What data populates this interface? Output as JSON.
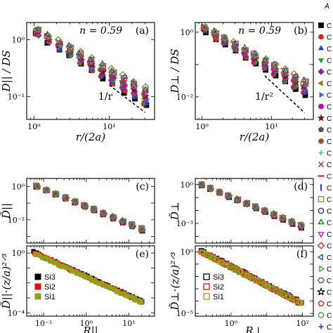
{
  "colors": [
    "#000000",
    "#d62728",
    "#1f3fbf",
    "#2ca02c",
    "#7b2fa0",
    "#808000",
    "#3070c8",
    "#c01090",
    "#7a1010",
    "#555555",
    "#a05020",
    "#40c0e0",
    "#8c564b",
    "#d02060",
    "#3b3b98",
    "#6a9a2a"
  ],
  "chart_data": [
    {
      "type": "scatter",
      "panel_label": "(a)",
      "note": "n = 0.59",
      "slope_label": "1/r",
      "ylabel": "D|| / DS",
      "xlabel": "r/(2a)",
      "xscale": "log",
      "yscale": "log",
      "xlim": [
        0.8,
        40
      ],
      "ylim": [
        0.04,
        2
      ],
      "x_ticks": [
        {
          "v": 1,
          "label": "10⁰"
        },
        {
          "v": 10,
          "label": "10¹"
        }
      ],
      "y_ticks": [
        {
          "v": 0.1,
          "label": "10⁻¹"
        },
        {
          "v": 1,
          "label": "10⁰"
        }
      ],
      "model": {
        "x_min": 1.1,
        "x_max": 30,
        "y0": 1.35,
        "k": 0.78,
        "spread": 0.32,
        "n_series": 16,
        "n_points": 11
      },
      "guide": {
        "x": [
          10,
          30
        ],
        "y": [
          0.16,
          0.053
        ]
      }
    },
    {
      "type": "scatter",
      "panel_label": "(b)",
      "note": "n = 0.59",
      "slope_label": "1/r²",
      "ylabel": "D⊥ / DS",
      "xlabel": "r/(2a)",
      "xscale": "log",
      "yscale": "log",
      "xlim": [
        0.8,
        40
      ],
      "ylim": [
        0.002,
        2
      ],
      "x_ticks": [
        {
          "v": 1,
          "label": "10⁰"
        },
        {
          "v": 10,
          "label": "10¹"
        }
      ],
      "y_ticks": [
        {
          "v": 0.01,
          "label": "10⁻²"
        },
        {
          "v": 1,
          "label": "10⁰"
        }
      ],
      "model": {
        "x_min": 1.1,
        "x_max": 30,
        "y0": 1.25,
        "k": 1.25,
        "spread": 0.45,
        "n_series": 16,
        "n_points": 11
      },
      "guide": {
        "x": [
          8,
          30
        ],
        "y": [
          0.045,
          0.0032
        ]
      }
    },
    {
      "type": "scatter",
      "panel_label": "(c)",
      "ylabel": "D̃||",
      "xlabel": "",
      "xscale": "log",
      "yscale": "log",
      "xlim": [
        0.04,
        40
      ],
      "ylim": [
        0.0004,
        3
      ],
      "x_ticks": [],
      "y_ticks": [
        {
          "v": 0.01,
          "label": "10⁻²"
        },
        {
          "v": 1,
          "label": "10⁰"
        }
      ],
      "model": {
        "x_min": 0.07,
        "x_max": 20,
        "y0": 1.0,
        "k": 1.05,
        "spread": 0.12,
        "n_series": 16,
        "n_points": 12
      }
    },
    {
      "type": "scatter",
      "panel_label": "(d)",
      "ylabel": "D̃⊥",
      "xlabel": "",
      "xscale": "log",
      "yscale": "log",
      "xlim": [
        0.1,
        200
      ],
      "ylim": [
        3e-05,
        3
      ],
      "x_ticks": [],
      "y_ticks": [
        {
          "v": 0.001,
          "label": "10⁻³"
        },
        {
          "v": 1,
          "label": "10⁰"
        }
      ],
      "model": {
        "x_min": 0.15,
        "x_max": 90,
        "y0": 0.95,
        "k": 1.15,
        "spread": 0.18,
        "n_series": 16,
        "n_points": 12
      }
    },
    {
      "type": "scatter",
      "panel_label": "(e)",
      "ylabel": "D̃||·(z/a)²ᐟ³",
      "xlabel": "R||",
      "xscale": "log",
      "yscale": "log",
      "xlim": [
        0.04,
        40
      ],
      "ylim": [
        6e-05,
        3
      ],
      "x_ticks": [
        {
          "v": 0.1,
          "label": "10⁻¹"
        },
        {
          "v": 1,
          "label": "10⁰"
        },
        {
          "v": 10,
          "label": "10¹"
        }
      ],
      "y_ticks": [
        {
          "v": 0.0001,
          "label": "10⁻⁴"
        },
        {
          "v": 1,
          "label": "10⁰"
        }
      ],
      "legend": [
        {
          "name": "Si3",
          "color": "#000000"
        },
        {
          "name": "Si2",
          "color": "#e01010"
        },
        {
          "name": "Si1",
          "color": "#9a9a20"
        }
      ],
      "legend_style": "filled",
      "legend_position": "bottom-left",
      "model": {
        "x_min": 0.06,
        "x_max": 20,
        "y0": 1.1,
        "k": 1.3,
        "spread": 0.12
      }
    },
    {
      "type": "scatter",
      "panel_label": "(f)",
      "ylabel": "D̃⊥·(z/a)²ᐟ³",
      "xlabel": "R⊥",
      "xscale": "log",
      "yscale": "log",
      "xlim": [
        0.1,
        200
      ],
      "ylim": [
        6e-06,
        3
      ],
      "x_ticks": [
        {
          "v": 1,
          "label": "10⁰"
        },
        {
          "v": 100,
          "label": "10²"
        }
      ],
      "y_ticks": [
        {
          "v": 1e-05,
          "label": "10⁻⁵"
        },
        {
          "v": 1,
          "label": "10⁰"
        }
      ],
      "legend": [
        {
          "name": "Si3",
          "color": "#000000"
        },
        {
          "name": "Si2",
          "color": "#e01010"
        },
        {
          "name": "Si1",
          "color": "#9a9a20"
        }
      ],
      "legend_style": "open",
      "legend_position": "bottom-left",
      "model": {
        "x_min": 0.15,
        "x_max": 90,
        "y0": 1.1,
        "k": 1.5,
        "spread": 0.2
      }
    }
  ],
  "side_legend": {
    "header": "A",
    "entries": [
      {
        "label": "C",
        "color": "#000000",
        "shape": "square"
      },
      {
        "label": "C",
        "color": "#d62728",
        "shape": "circle"
      },
      {
        "label": "C",
        "color": "#1f3fbf",
        "shape": "triangle"
      },
      {
        "label": "C",
        "color": "#2ca02c",
        "shape": "tri-down"
      },
      {
        "label": "C",
        "color": "#7b2fa0",
        "shape": "diamond"
      },
      {
        "label": "C",
        "color": "#808000",
        "shape": "tri-left"
      },
      {
        "label": "C",
        "color": "#3070c8",
        "shape": "tri-right"
      },
      {
        "label": "C",
        "color": "#c01090",
        "shape": "hexagon"
      },
      {
        "label": "C",
        "color": "#7a1010",
        "shape": "star"
      },
      {
        "label": "C",
        "color": "#555555",
        "shape": "pentagon"
      },
      {
        "label": "C",
        "color": "#a05020",
        "shape": "circle"
      },
      {
        "label": "C",
        "color": "#40c0e0",
        "shape": "plus"
      },
      {
        "label": "C",
        "color": "#8c564b",
        "shape": "cross"
      },
      {
        "label": "C",
        "color": "#d02060",
        "shape": "dash"
      },
      {
        "label": "C",
        "color": "#3b3b98",
        "shape": "bar"
      },
      {
        "label": "C",
        "color": "#6a9a2a",
        "shape": "square-open"
      },
      {
        "label": "C",
        "color": "#2020a0",
        "shape": "circle-open"
      },
      {
        "label": "C",
        "color": "#008000",
        "shape": "triangle-open"
      },
      {
        "label": "C",
        "color": "#c000c0",
        "shape": "tri-down-open"
      },
      {
        "label": "C",
        "color": "#d62728",
        "shape": "diamond-open"
      },
      {
        "label": "C",
        "color": "#1f3fbf",
        "shape": "tri-left-open"
      },
      {
        "label": "C",
        "color": "#2ca02c",
        "shape": "tri-right-open"
      },
      {
        "label": "C",
        "color": "#7b2fa0",
        "shape": "hexagon-open"
      },
      {
        "label": "C",
        "color": "#000000",
        "shape": "star-open"
      },
      {
        "label": "C",
        "color": "#d62728",
        "shape": "pentagon-open"
      },
      {
        "label": "C",
        "color": "#2ca02c",
        "shape": "circle-open"
      },
      {
        "label": "C",
        "color": "#1f3fbf",
        "shape": "plus"
      }
    ]
  }
}
